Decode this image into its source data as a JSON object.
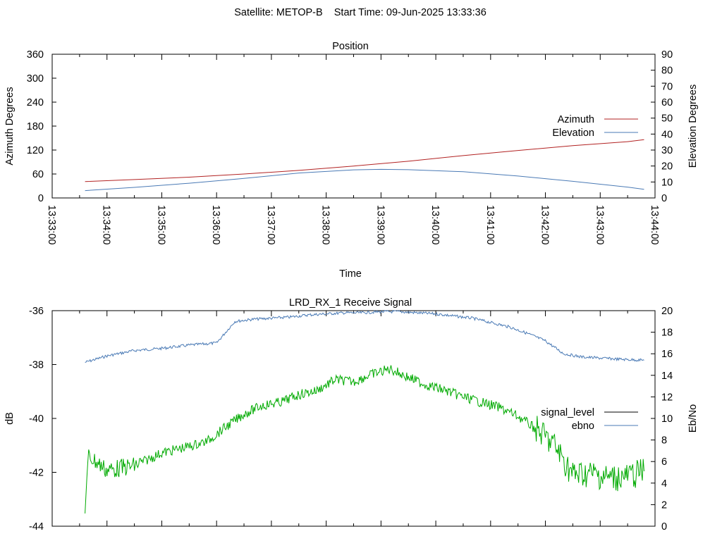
{
  "figure": {
    "title": "Satellite: METOP-B    Start Time: 09-Jun-2025 13:33:36"
  },
  "chart_data": [
    {
      "type": "line",
      "title": "Position",
      "xlabel": "Time",
      "ylabel": "Azimuth Degrees",
      "y2label": "Elevation Degrees",
      "x_ticks": [
        "13:33:00",
        "13:34:00",
        "13:35:00",
        "13:36:00",
        "13:37:00",
        "13:38:00",
        "13:39:00",
        "13:40:00",
        "13:41:00",
        "13:42:00",
        "13:43:00",
        "13:44:00"
      ],
      "xlim": [
        "13:33:00",
        "13:44:00"
      ],
      "ylim": [
        0,
        360
      ],
      "y2lim": [
        0,
        90
      ],
      "y_ticks": [
        0,
        60,
        120,
        180,
        240,
        300,
        360
      ],
      "y2_ticks": [
        0,
        10,
        20,
        30,
        40,
        50,
        60,
        70,
        80,
        90
      ],
      "legend_position": "right",
      "colors": {
        "azimuth": "#b22222",
        "elevation": "#4a7ab5"
      },
      "series": [
        {
          "name": "Azimuth",
          "axis": "left",
          "x": [
            "13:33:36",
            "13:34:30",
            "13:35:30",
            "13:36:30",
            "13:37:30",
            "13:38:30",
            "13:39:30",
            "13:40:30",
            "13:41:30",
            "13:42:30",
            "13:43:30",
            "13:43:48"
          ],
          "values": [
            41,
            46,
            52,
            60,
            69,
            80,
            92,
            106,
            119,
            131,
            141,
            146
          ]
        },
        {
          "name": "Elevation",
          "axis": "right",
          "x": [
            "13:33:36",
            "13:34:30",
            "13:35:30",
            "13:36:30",
            "13:37:30",
            "13:38:30",
            "13:39:00",
            "13:39:30",
            "13:40:30",
            "13:41:30",
            "13:42:30",
            "13:43:30",
            "13:43:48"
          ],
          "values": [
            4.6,
            6.6,
            9.2,
            12.2,
            15.6,
            17.6,
            17.9,
            17.7,
            16.4,
            13.7,
            10.4,
            6.8,
            5.4
          ]
        }
      ]
    },
    {
      "type": "line",
      "title": "LRD_RX_1 Receive Signal",
      "ylabel": "dB",
      "y2label": "Eb/No",
      "xlim": [
        "13:33:00",
        "13:44:00"
      ],
      "ylim": [
        -44,
        -36
      ],
      "y2lim": [
        0,
        20
      ],
      "y_ticks": [
        -44,
        -42,
        -40,
        -38,
        -36
      ],
      "y2_ticks": [
        0,
        2,
        4,
        6,
        8,
        10,
        12,
        14,
        16,
        18,
        20
      ],
      "legend_position": "right",
      "colors": {
        "signal_level": "#000000",
        "ebno": "#4a7ab5",
        "trace": "#00aa00"
      },
      "series": [
        {
          "name": "signal_level",
          "axis": "left",
          "x": [],
          "values": []
        },
        {
          "name": "ebno",
          "axis": "right",
          "x": [
            "13:33:36",
            "13:34:00",
            "13:34:30",
            "13:35:00",
            "13:35:30",
            "13:36:00",
            "13:36:20",
            "13:36:40",
            "13:37:00",
            "13:37:20",
            "13:37:40",
            "13:38:00",
            "13:38:20",
            "13:38:40",
            "13:39:00",
            "13:39:20",
            "13:39:40",
            "13:40:00",
            "13:40:20",
            "13:40:40",
            "13:41:00",
            "13:41:20",
            "13:41:40",
            "13:42:00",
            "13:42:20",
            "13:42:40",
            "13:43:00",
            "13:43:20",
            "13:43:48"
          ],
          "values": [
            15.2,
            15.8,
            16.3,
            16.5,
            16.8,
            17.0,
            19.0,
            19.2,
            19.3,
            19.4,
            19.6,
            19.7,
            19.8,
            19.8,
            19.9,
            19.9,
            19.8,
            19.7,
            19.5,
            19.3,
            18.9,
            18.5,
            17.9,
            17.2,
            16.0,
            15.7,
            15.6,
            15.5,
            15.4
          ]
        },
        {
          "name": "",
          "axis": "right",
          "x": [
            "13:33:36",
            "13:33:40",
            "13:34:00",
            "13:34:30",
            "13:35:00",
            "13:35:30",
            "13:35:50",
            "13:36:10",
            "13:36:30",
            "13:36:50",
            "13:37:10",
            "13:37:30",
            "13:37:50",
            "13:38:10",
            "13:38:30",
            "13:38:50",
            "13:39:10",
            "13:39:30",
            "13:39:50",
            "13:40:10",
            "13:40:30",
            "13:40:50",
            "13:41:10",
            "13:41:30",
            "13:41:50",
            "13:42:10",
            "13:42:30",
            "13:42:50",
            "13:43:10",
            "13:43:30",
            "13:43:48"
          ],
          "values": [
            1.8,
            6.5,
            5.2,
            5.6,
            6.8,
            7.4,
            7.9,
            9.2,
            10.4,
            11.2,
            11.5,
            12.2,
            12.6,
            13.6,
            13.4,
            14.1,
            14.6,
            13.8,
            13.1,
            12.6,
            12.0,
            11.5,
            11.0,
            10.2,
            9.0,
            7.5,
            4.8,
            4.9,
            4.5,
            4.6,
            5.1
          ]
        }
      ]
    }
  ]
}
